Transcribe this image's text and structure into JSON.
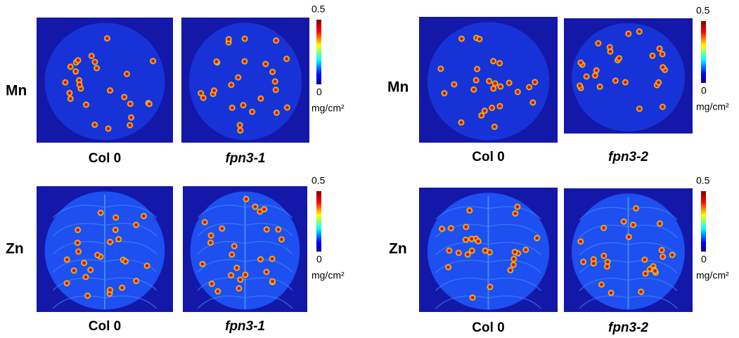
{
  "panels": [
    {
      "element": "Mn",
      "captions": [
        "Col 0",
        "fpn3-1"
      ],
      "scale_max": 0.5,
      "scale_min": 0,
      "unit": "mg/cm²"
    },
    {
      "element": "Mn",
      "captions": [
        "Col 0",
        "fpn3-2"
      ],
      "scale_max": 0.5,
      "scale_min": 0,
      "unit": "mg/cm²"
    },
    {
      "element": "Zn",
      "captions": [
        "Col 0",
        "fpn3-1"
      ],
      "scale_max": 0.5,
      "scale_min": 0,
      "unit": "mg/cm²"
    },
    {
      "element": "Zn",
      "captions": [
        "Col 0",
        "fpn3-2"
      ],
      "scale_max": 0.5,
      "scale_min": 0,
      "unit": "mg/cm²"
    }
  ]
}
